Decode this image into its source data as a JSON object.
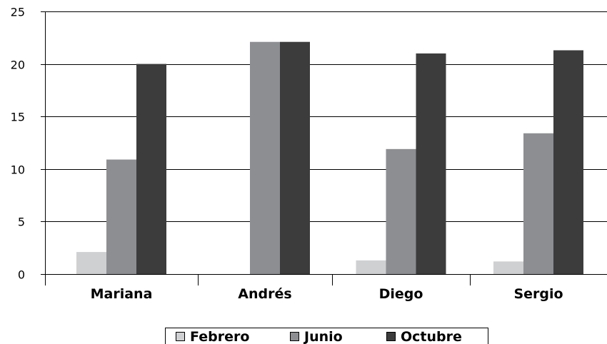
{
  "chart_data": {
    "type": "bar",
    "categories": [
      "Mariana",
      "Andrés",
      "Diego",
      "Sergio"
    ],
    "series": [
      {
        "name": "Febrero",
        "values": [
          2.1,
          0,
          1.3,
          1.2
        ],
        "color": "#cfd0d2"
      },
      {
        "name": "Junio",
        "values": [
          10.9,
          22.1,
          11.9,
          13.4
        ],
        "color": "#8d8e92"
      },
      {
        "name": "Octubre",
        "values": [
          20.0,
          22.1,
          21.0,
          21.3
        ],
        "color": "#3c3c3c"
      }
    ],
    "ylim": [
      0,
      25
    ],
    "yticks": [
      "0",
      "5",
      "10",
      "15",
      "20",
      "25"
    ],
    "grid": true,
    "legend_position": "bottom"
  }
}
